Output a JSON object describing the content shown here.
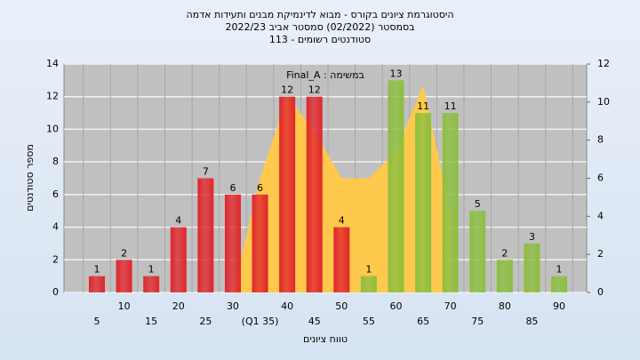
{
  "chart_data": {
    "type": "bar",
    "title": "היסטוגרמת ציונים בקורס - מבוא לדינמיקת מבנים ותעידות אדמה",
    "subtitle": "בסמסטר  (02/2022)  סמסטר אביב 2022/23",
    "subtitle2": "סטודנטים רשומים - 113",
    "annotation": "במשימה : Final_A",
    "ylabel": "מספר סטודנטים",
    "xlabel": "טווח ציונים",
    "categories": [
      "5",
      "10",
      "15",
      "20",
      "25",
      "30",
      "(Q1 35)",
      "40",
      "45",
      "50",
      "55",
      "60",
      "65",
      "70",
      "75",
      "80",
      "85",
      "90"
    ],
    "values": [
      1,
      2,
      1,
      4,
      7,
      6,
      6,
      12,
      12,
      4,
      1,
      13,
      11,
      11,
      5,
      2,
      3,
      1
    ],
    "colors": [
      "#e0262b",
      "#e0262b",
      "#e0262b",
      "#e0262b",
      "#e0262b",
      "#e0262b",
      "#e0262b",
      "#e0262b",
      "#e0262b",
      "#e0262b",
      "#8cbf3f",
      "#8cbf3f",
      "#8cbf3f",
      "#8cbf3f",
      "#8cbf3f",
      "#8cbf3f",
      "#8cbf3f",
      "#8cbf3f"
    ],
    "series": [
      {
        "type": "area",
        "axis": "y2",
        "color": "#ffc94d",
        "values": [
          null,
          null,
          null,
          null,
          null,
          0,
          6,
          10.3,
          8.5,
          6,
          6,
          7.4,
          10.9,
          4.2,
          null,
          null,
          null,
          null
        ]
      }
    ],
    "ylim": [
      0,
      14
    ],
    "yticks": [
      0,
      2,
      4,
      6,
      8,
      10,
      12,
      14
    ],
    "y2lim": [
      0,
      12
    ],
    "y2ticks": [
      0,
      2,
      4,
      6,
      8,
      10,
      12
    ],
    "grid": true
  }
}
